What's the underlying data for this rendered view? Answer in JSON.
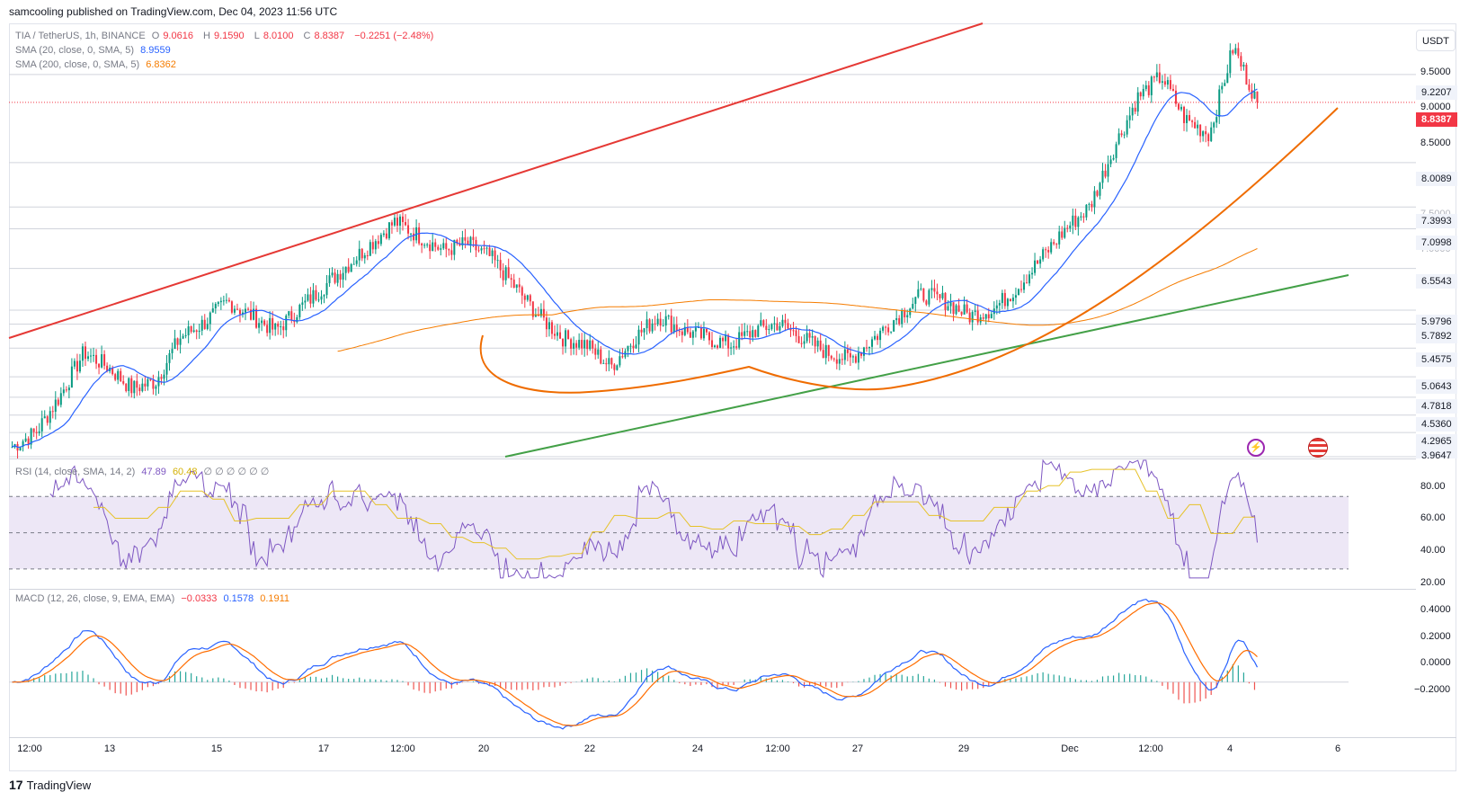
{
  "header": {
    "publisher": "samcooling published on TradingView.com, Dec 04, 2023 11:56 UTC"
  },
  "symbol": {
    "name": "TIA / TetherUS, 1h, BINANCE",
    "open_label": "O",
    "open": "9.0616",
    "high_label": "H",
    "high": "9.1590",
    "low_label": "L",
    "low": "8.0100",
    "close_label": "C",
    "close": "8.8387",
    "change": "−0.2251 (−2.48%)"
  },
  "indicators": {
    "sma20": {
      "label": "SMA (20, close, 0, SMA, 5)",
      "value": "8.9559"
    },
    "sma200": {
      "label": "SMA (200, close, 0, SMA, 5)",
      "value": "6.8362"
    },
    "rsi": {
      "label": "RSI (14, close, SMA, 14, 2)",
      "value1": "47.89",
      "value2": "60.48",
      "rest": "∅ ∅ ∅ ∅ ∅ ∅"
    },
    "macd": {
      "label": "MACD (12, 26, close, 9, EMA, EMA)",
      "hist": "−0.0333",
      "macd": "0.1578",
      "signal": "0.1911"
    }
  },
  "currency_button": "USDT",
  "price_labels": [
    {
      "text": "9.2207",
      "y": 9.2207,
      "style": "grey"
    },
    {
      "text": "8.8387",
      "y": 8.8387,
      "style": "red"
    },
    {
      "text": "8.0089",
      "y": 8.0089,
      "style": "grey"
    },
    {
      "text": "7.3993",
      "y": 7.3993,
      "style": "grey"
    },
    {
      "text": "7.0998",
      "y": 7.0998,
      "style": "grey"
    },
    {
      "text": "6.5543",
      "y": 6.5543,
      "style": "grey"
    },
    {
      "text": "5.9796",
      "y": 5.9796,
      "style": "grey"
    },
    {
      "text": "5.7892",
      "y": 5.7892,
      "style": "grey"
    },
    {
      "text": "5.4575",
      "y": 5.4575,
      "style": "grey"
    },
    {
      "text": "5.0643",
      "y": 5.0643,
      "style": "grey"
    },
    {
      "text": "4.7818",
      "y": 4.7818,
      "style": "grey"
    },
    {
      "text": "4.5360",
      "y": 4.536,
      "style": "grey"
    },
    {
      "text": "4.2965",
      "y": 4.2965,
      "style": "grey"
    },
    {
      "text": "3.9647",
      "y": 3.9647,
      "style": "grey"
    }
  ],
  "price_scale": [
    "9.5000",
    "9.0000",
    "8.5000",
    "7.5000",
    "7.0000"
  ],
  "rsi_scale": [
    "80.00",
    "60.00",
    "40.00",
    "20.00"
  ],
  "macd_scale": [
    "0.4000",
    "0.2000",
    "0.0000",
    "−0.2000"
  ],
  "x_axis": [
    "12:00",
    "13",
    "15",
    "17",
    "12:00",
    "20",
    "22",
    "24",
    "12:00",
    "27",
    "29",
    "Dec",
    "12:00",
    "4",
    "6"
  ],
  "footer": {
    "logo_text": "TradingView"
  },
  "colors": {
    "up": "#089981",
    "down": "#f23645",
    "sma20": "#2962ff",
    "sma200": "#f57c00",
    "resistance": "#e53935",
    "support": "#43a047",
    "rsi_band": "#ede7f6"
  },
  "chart_data": {
    "type": "line",
    "title": "TIA / TetherUS, 1h, BINANCE",
    "price_range": [
      3.9647,
      9.9
    ],
    "series": [
      {
        "name": "SMA (20, close, 0, SMA, 5)",
        "last": 8.9559
      },
      {
        "name": "SMA (200, close, 0, SMA, 5)",
        "last": 6.8362
      }
    ],
    "close_path": [
      4.1,
      4.3,
      4.8,
      5.4,
      5.2,
      4.9,
      5.0,
      5.6,
      5.8,
      6.1,
      5.9,
      5.7,
      6.0,
      6.3,
      6.6,
      6.9,
      7.2,
      7.0,
      6.8,
      6.9,
      6.7,
      6.3,
      5.9,
      5.6,
      5.5,
      5.2,
      5.6,
      5.9,
      5.7,
      5.6,
      5.5,
      5.7,
      5.8,
      5.6,
      5.4,
      5.3,
      5.6,
      5.9,
      6.2,
      6.1,
      5.9,
      6.0,
      6.3,
      6.7,
      7.1,
      7.4,
      8.2,
      8.9,
      9.2,
      8.6,
      8.4,
      9.6,
      8.84
    ],
    "rsi_range": [
      20,
      90
    ],
    "macd_range": [
      -0.3,
      0.5
    ]
  }
}
